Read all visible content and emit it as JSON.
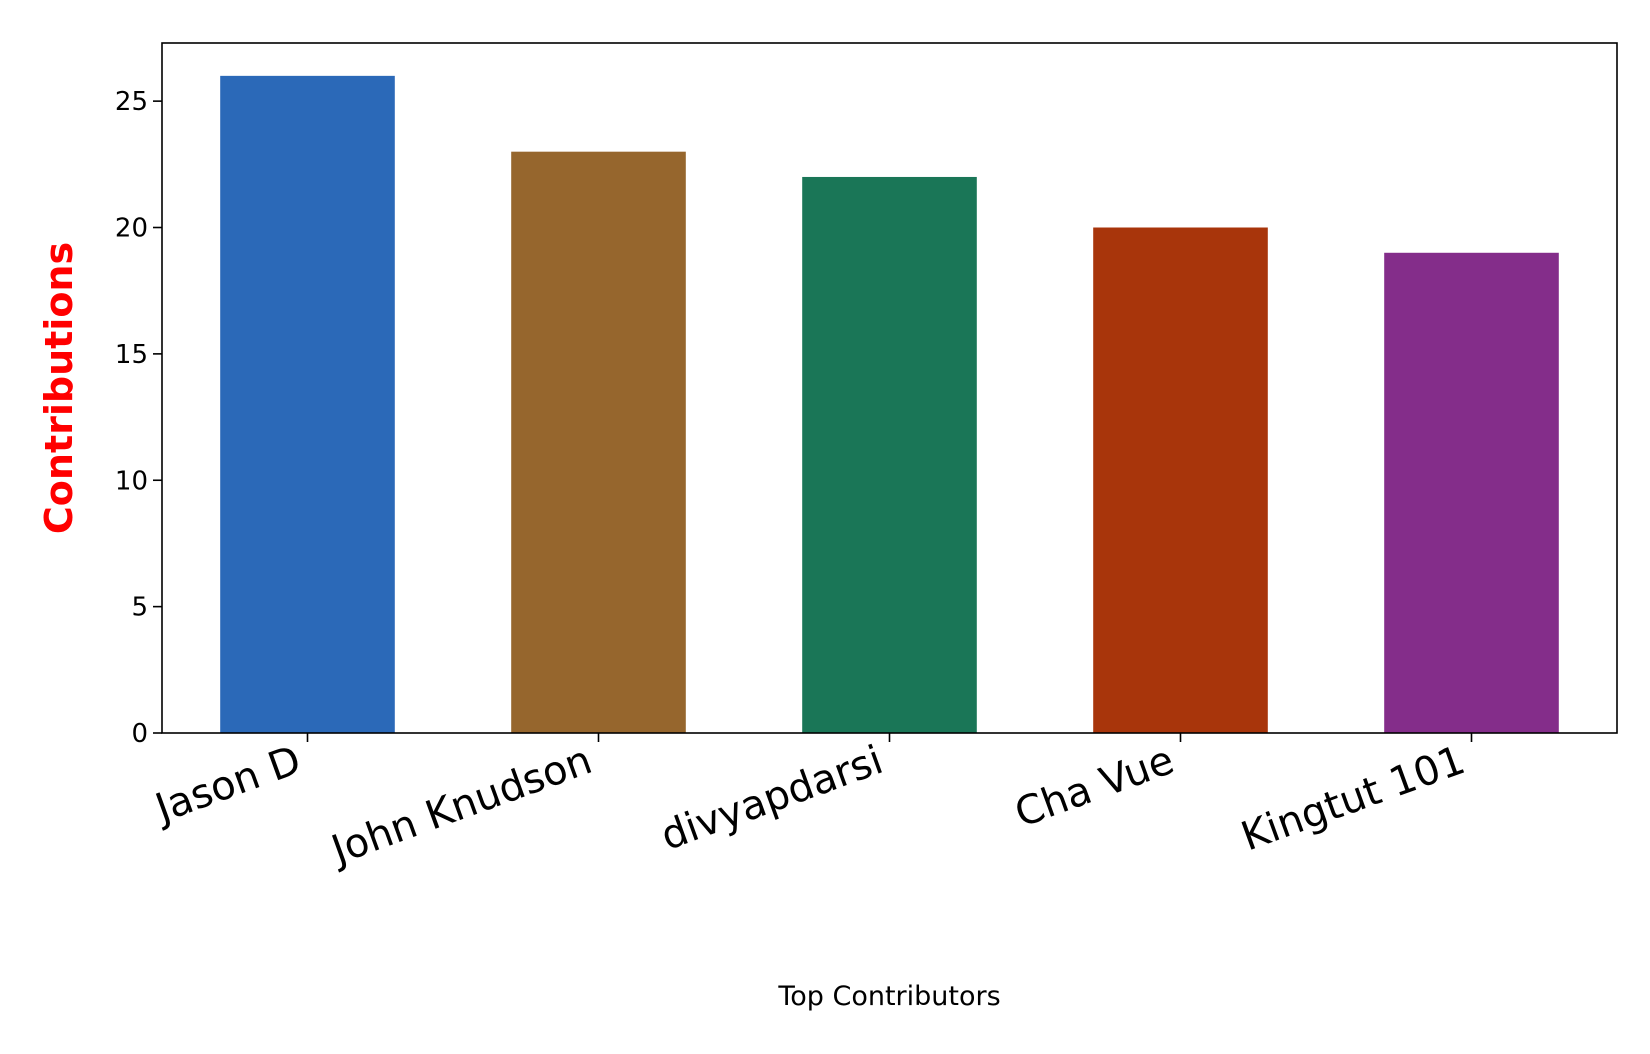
{
  "chart_data": {
    "type": "bar",
    "categories": [
      "Jason D",
      "John Knudson",
      "divyapdarsi",
      "Cha Vue",
      "Kingtut 101"
    ],
    "values": [
      26,
      23,
      22,
      20,
      19
    ],
    "colors": [
      "#2b69b8",
      "#96662d",
      "#1a7657",
      "#a8350b",
      "#842d8a"
    ],
    "title": "",
    "xlabel": "Top Contributors",
    "ylabel": "Contributions",
    "ylabel_color": "#ff0000",
    "ylim": [
      0,
      27.3
    ],
    "yticks": [
      0,
      5,
      10,
      15,
      20,
      25
    ],
    "ytick_labels": [
      "0",
      "5",
      "10",
      "15",
      "20",
      "25"
    ],
    "grid": false,
    "legend": "none"
  }
}
